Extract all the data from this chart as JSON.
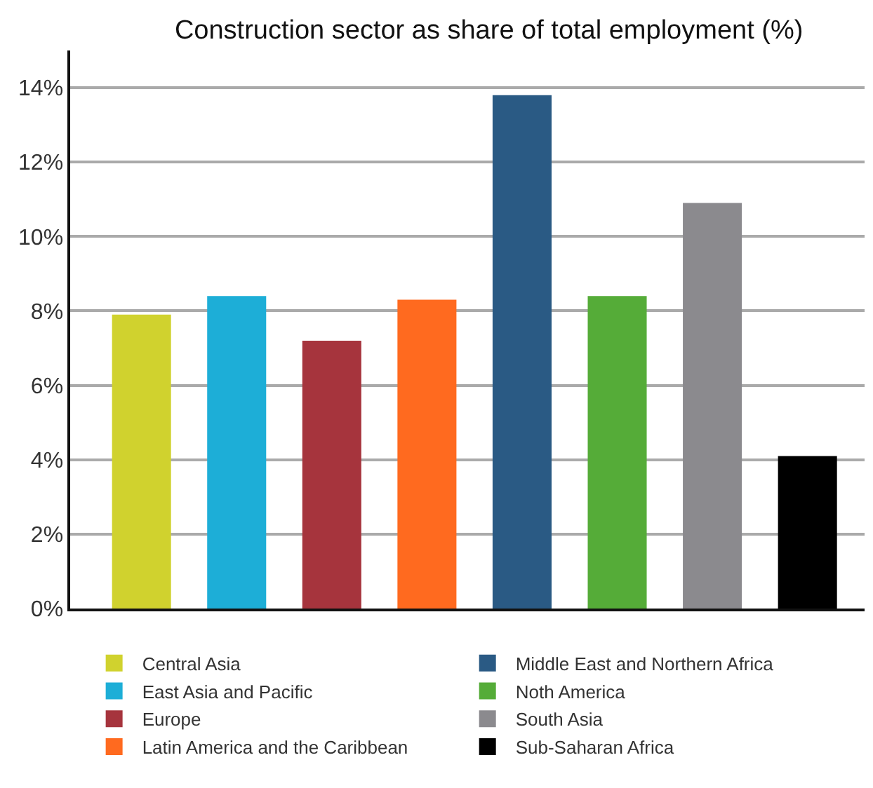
{
  "chart_data": {
    "type": "bar",
    "title": "Construction sector as share of total employment (%)",
    "categories": [
      null,
      null,
      null,
      null,
      null,
      null,
      null,
      null
    ],
    "series": [
      {
        "name": "Central Asia",
        "color": "#d0d22e",
        "values": [
          7.9,
          null,
          null,
          null,
          null,
          null,
          null,
          null
        ]
      },
      {
        "name": "East Asia and Pacific",
        "color": "#1daed7",
        "values": [
          null,
          8.4,
          null,
          null,
          null,
          null,
          null,
          null
        ]
      },
      {
        "name": "Europe",
        "color": "#a6343d",
        "values": [
          null,
          null,
          7.2,
          null,
          null,
          null,
          null,
          null
        ]
      },
      {
        "name": "Latin America and the Caribbean",
        "color": "#ff6a1f",
        "values": [
          null,
          null,
          null,
          8.3,
          null,
          null,
          null,
          null
        ]
      },
      {
        "name": "Middle East and Northern Africa",
        "color": "#2a5a84",
        "values": [
          null,
          null,
          null,
          null,
          13.8,
          null,
          null,
          null
        ]
      },
      {
        "name": "Noth America",
        "color": "#55ac38",
        "values": [
          null,
          null,
          null,
          null,
          null,
          8.4,
          null,
          null
        ]
      },
      {
        "name": "South Asia",
        "color": "#8b8a8e",
        "values": [
          null,
          null,
          null,
          null,
          null,
          null,
          10.9,
          null
        ]
      },
      {
        "name": "Sub-Saharan Africa",
        "color": "#000000",
        "values": [
          null,
          null,
          null,
          null,
          null,
          null,
          null,
          4.1
        ]
      }
    ],
    "ylim": [
      0,
      15
    ],
    "yticks": [
      {
        "value": 0,
        "label": "0%"
      },
      {
        "value": 2,
        "label": "2%"
      },
      {
        "value": 4,
        "label": "4%"
      },
      {
        "value": 6,
        "label": "6%"
      },
      {
        "value": 8,
        "label": "8%"
      },
      {
        "value": 10,
        "label": "10%"
      },
      {
        "value": 12,
        "label": "12%"
      },
      {
        "value": 14,
        "label": "14%"
      }
    ],
    "grid": "y",
    "legend": "bottom"
  }
}
